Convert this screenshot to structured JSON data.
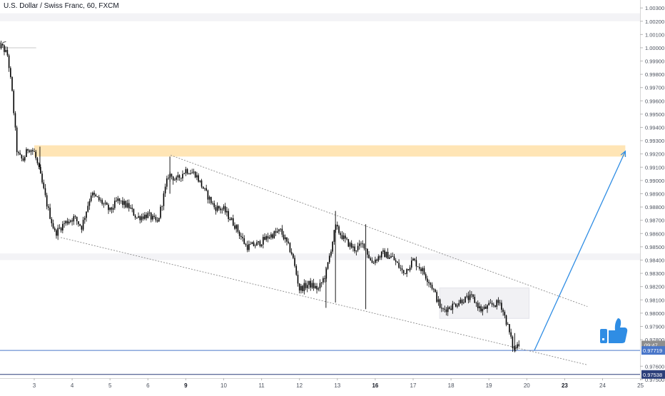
{
  "chart_data": {
    "type": "candlestick",
    "title": "U.S. Dollar / Swiss Franc, 60, FXCM",
    "ylim": [
      0.9751,
      1.0036
    ],
    "y_ticks": [
      "1.00300",
      "1.00200",
      "1.00100",
      "1.00000",
      "0.99900",
      "0.99800",
      "0.99700",
      "0.99600",
      "0.99500",
      "0.99400",
      "0.99300",
      "0.99200",
      "0.99100",
      "0.99000",
      "0.98900",
      "0.98800",
      "0.98700",
      "0.98600",
      "0.98500",
      "0.98400",
      "0.98300",
      "0.98200",
      "0.98100",
      "0.98000",
      "0.97900",
      "0.97800",
      "0.97600",
      "0.97500"
    ],
    "x_ticks": [
      {
        "label": "3",
        "day": 3,
        "bold": false
      },
      {
        "label": "4",
        "day": 4,
        "bold": false
      },
      {
        "label": "5",
        "day": 5,
        "bold": false
      },
      {
        "label": "6",
        "day": 6,
        "bold": false
      },
      {
        "label": "9",
        "day": 7,
        "bold": true
      },
      {
        "label": "10",
        "day": 8,
        "bold": false
      },
      {
        "label": "11",
        "day": 9,
        "bold": false
      },
      {
        "label": "12",
        "day": 10,
        "bold": false
      },
      {
        "label": "13",
        "day": 11,
        "bold": false
      },
      {
        "label": "16",
        "day": 12,
        "bold": true
      },
      {
        "label": "17",
        "day": 13,
        "bold": false
      },
      {
        "label": "18",
        "day": 14,
        "bold": false
      },
      {
        "label": "19",
        "day": 15,
        "bold": false
      },
      {
        "label": "20",
        "day": 16,
        "bold": false
      },
      {
        "label": "23",
        "day": 17,
        "bold": true
      },
      {
        "label": "24",
        "day": 18,
        "bold": false
      },
      {
        "label": "25",
        "day": 19,
        "bold": false
      }
    ],
    "price_path": [
      [
        2.0,
        1.0002
      ],
      [
        2.15,
        1.0001
      ],
      [
        2.3,
        0.9994
      ],
      [
        2.42,
        0.9965
      ],
      [
        2.55,
        0.992
      ],
      [
        2.7,
        0.9915
      ],
      [
        2.85,
        0.9925
      ],
      [
        3.0,
        0.9921
      ],
      [
        3.15,
        0.9905
      ],
      [
        3.35,
        0.988
      ],
      [
        3.55,
        0.986
      ],
      [
        3.8,
        0.9868
      ],
      [
        4.05,
        0.9872
      ],
      [
        4.25,
        0.9865
      ],
      [
        4.5,
        0.989
      ],
      [
        4.8,
        0.9883
      ],
      [
        5.0,
        0.9877
      ],
      [
        5.2,
        0.9885
      ],
      [
        5.5,
        0.988
      ],
      [
        5.7,
        0.9872
      ],
      [
        6.0,
        0.9874
      ],
      [
        6.25,
        0.9868
      ],
      [
        6.55,
        0.9905
      ],
      [
        6.75,
        0.99
      ],
      [
        7.0,
        0.9908
      ],
      [
        7.25,
        0.9905
      ],
      [
        7.5,
        0.9892
      ],
      [
        7.75,
        0.988
      ],
      [
        8.0,
        0.9878
      ],
      [
        8.3,
        0.9866
      ],
      [
        8.6,
        0.985
      ],
      [
        8.9,
        0.9852
      ],
      [
        9.2,
        0.9858
      ],
      [
        9.5,
        0.9862
      ],
      [
        9.8,
        0.9845
      ],
      [
        10.0,
        0.9818
      ],
      [
        10.25,
        0.9822
      ],
      [
        10.5,
        0.9818
      ],
      [
        10.7,
        0.983
      ],
      [
        10.95,
        0.9865
      ],
      [
        11.2,
        0.9855
      ],
      [
        11.45,
        0.9848
      ],
      [
        11.7,
        0.9852
      ],
      [
        11.9,
        0.9838
      ],
      [
        12.2,
        0.9845
      ],
      [
        12.45,
        0.9842
      ],
      [
        12.75,
        0.983
      ],
      [
        13.0,
        0.984
      ],
      [
        13.25,
        0.9832
      ],
      [
        13.5,
        0.982
      ],
      [
        13.75,
        0.9802
      ],
      [
        14.0,
        0.9805
      ],
      [
        14.3,
        0.981
      ],
      [
        14.55,
        0.9812
      ],
      [
        14.8,
        0.9802
      ],
      [
        15.05,
        0.9806
      ],
      [
        15.3,
        0.9808
      ],
      [
        15.5,
        0.979
      ],
      [
        15.65,
        0.9772
      ],
      [
        15.8,
        0.9778
      ]
    ],
    "spikes": [
      {
        "day": 3.15,
        "high": 0.99255,
        "low": 0.9908
      },
      {
        "day": 6.58,
        "high": 0.9918,
        "low": 0.989
      },
      {
        "day": 10.7,
        "high": 0.9835,
        "low": 0.9804
      },
      {
        "day": 10.95,
        "high": 0.9877,
        "low": 0.9808
      },
      {
        "day": 11.75,
        "high": 0.9867,
        "low": 0.9803
      },
      {
        "day": 15.68,
        "high": 0.9785,
        "low": 0.97705
      }
    ],
    "horizontal_lines": [
      {
        "price": 0.97719,
        "label": "0.97719",
        "color": "#4a77c9"
      },
      {
        "price": 0.97538,
        "label": "0.97538",
        "color": "#2c3f7a"
      }
    ],
    "price_label": {
      "price": 0.9776,
      "label": "09:47"
    },
    "resistance_zone": {
      "from": 0.9918,
      "to": 0.99265,
      "color": "#ffe0a8"
    },
    "shaded_bands": [
      {
        "from": 1.002,
        "to": 1.0026
      },
      {
        "from": 0.984,
        "to": 0.9845
      }
    ],
    "consolidation_box": {
      "day_from": 13.7,
      "day_to": 16.06,
      "from": 0.9796,
      "to": 0.9819
    },
    "channel_upper": [
      [
        6.6,
        0.9919
      ],
      [
        17.6,
        0.9805
      ]
    ],
    "channel_lower": [
      [
        3.7,
        0.9857
      ],
      [
        17.6,
        0.9761
      ]
    ],
    "small_channel": [
      [
        [
          1.0,
          1.0012
        ],
        [
          2.0,
          1.002
        ]
      ],
      [
        [
          1.0,
          0.9995
        ],
        [
          2.3,
          1.0005
        ]
      ]
    ],
    "flat_line": [
      [
        2.0,
        1.0
      ],
      [
        3.05,
        1.0
      ]
    ],
    "projection_arrow": [
      [
        16.2,
        0.97719
      ],
      [
        18.6,
        0.9922
      ]
    ],
    "icon": "thumbs-up-icon"
  }
}
